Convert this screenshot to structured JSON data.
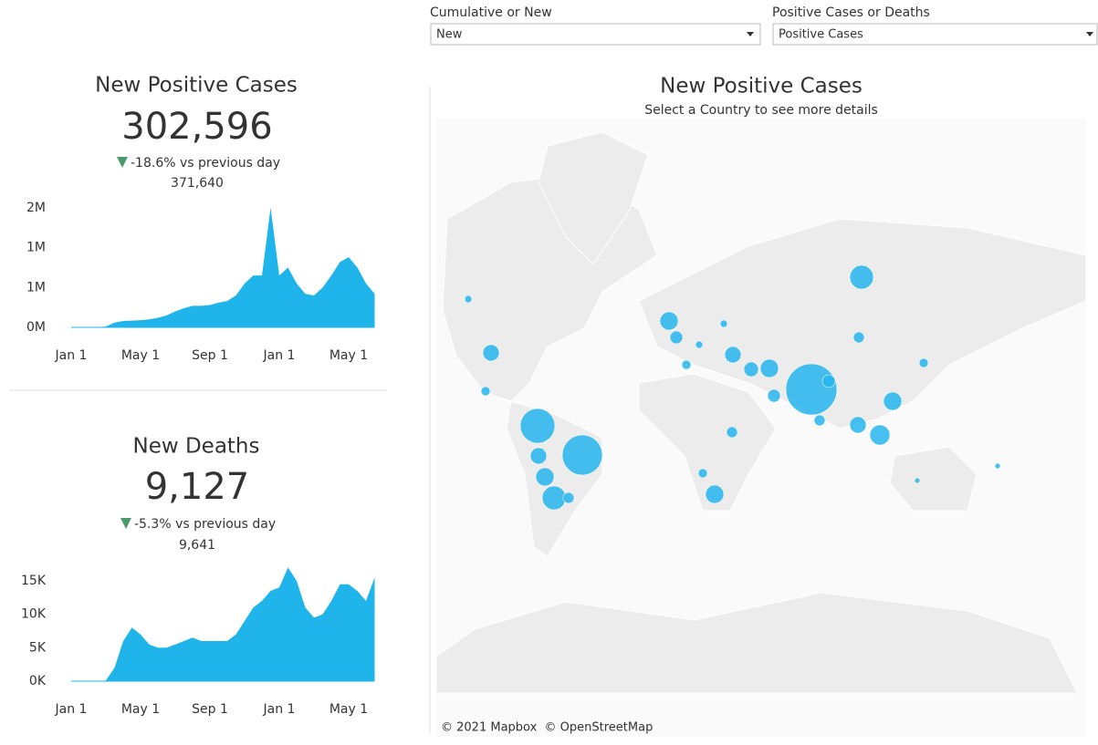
{
  "filters": [
    {
      "label": "Cumulative or New",
      "value": "New"
    },
    {
      "label": "Positive Cases or Deaths",
      "value": "Positive Cases"
    }
  ],
  "panels": [
    {
      "title": "New Positive Cases",
      "value": "302,596",
      "change": "-18.6% vs previous day",
      "previous": "371,640",
      "chart": {
        "type": "area",
        "color": "#1fb5ea",
        "categories": [
          "Jan 1",
          null,
          null,
          null,
          null,
          null,
          null,
          null,
          "May 1",
          null,
          null,
          null,
          null,
          null,
          null,
          null,
          "Sep 1",
          null,
          null,
          null,
          null,
          null,
          null,
          null,
          "Jan 1",
          null,
          null,
          null,
          null,
          null,
          null,
          null,
          "May 1",
          null,
          null,
          null
        ],
        "values": [
          0,
          0,
          2000,
          5000,
          10000,
          60000,
          80000,
          85000,
          90000,
          100000,
          120000,
          150000,
          200000,
          240000,
          270000,
          270000,
          280000,
          310000,
          330000,
          400000,
          550000,
          650000,
          650000,
          1500000,
          650000,
          750000,
          550000,
          420000,
          400000,
          500000,
          650000,
          820000,
          880000,
          750000,
          550000,
          420000
        ],
        "ylim": [
          0,
          1600000
        ],
        "yticks": [
          {
            "value": 0,
            "label": "0M"
          },
          {
            "value": 500000,
            "label": "1M"
          },
          {
            "value": 1000000,
            "label": "1M"
          },
          {
            "value": 1500000,
            "label": "2M"
          }
        ]
      }
    },
    {
      "title": "New Deaths",
      "value": "9,127",
      "change": "-5.3% vs previous day",
      "previous": "9,641",
      "chart": {
        "type": "area",
        "color": "#1fb5ea",
        "categories": [
          "Jan 1",
          null,
          null,
          null,
          null,
          null,
          null,
          null,
          "May 1",
          null,
          null,
          null,
          null,
          null,
          null,
          null,
          "Sep 1",
          null,
          null,
          null,
          null,
          null,
          null,
          null,
          "Jan 1",
          null,
          null,
          null,
          null,
          null,
          null,
          null,
          "May 1",
          null,
          null,
          null
        ],
        "values": [
          0,
          0,
          0,
          0,
          100,
          2000,
          6000,
          8000,
          7000,
          5500,
          5000,
          5000,
          5500,
          6000,
          6500,
          6000,
          6000,
          6000,
          6000,
          7000,
          9000,
          11000,
          12000,
          13500,
          14000,
          17000,
          15000,
          11000,
          9500,
          10000,
          12000,
          14500,
          14500,
          13500,
          12000,
          15500
        ],
        "ylim": [
          0,
          18000
        ],
        "yticks": [
          {
            "value": 0,
            "label": "0K"
          },
          {
            "value": 5000,
            "label": "5K"
          },
          {
            "value": 10000,
            "label": "10K"
          },
          {
            "value": 15000,
            "label": "15K"
          }
        ]
      }
    }
  ],
  "map": {
    "title": "New Positive Cases",
    "subtitle": "Select a Country to see more details",
    "attribution": "© 2021 Mapbox  © OpenStreetMap"
  }
}
